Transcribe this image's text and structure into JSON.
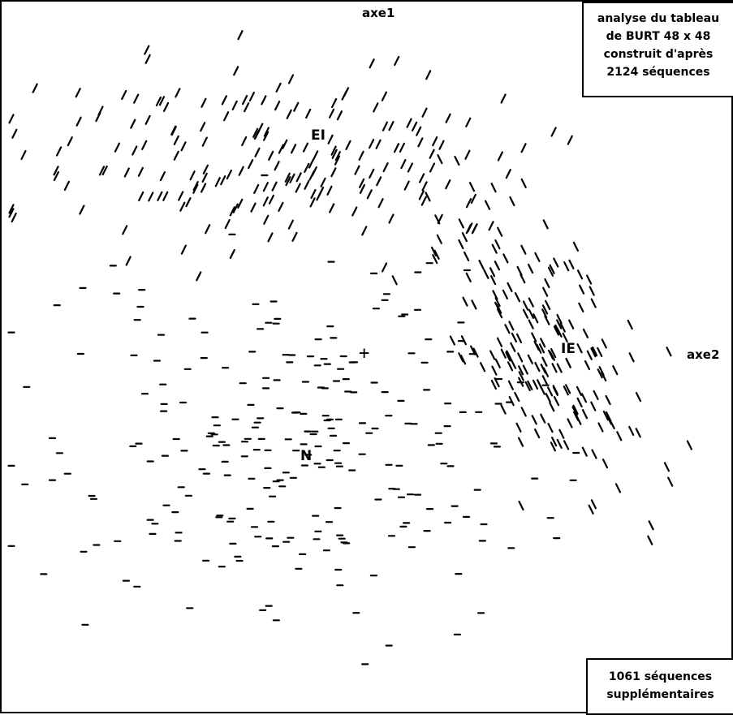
{
  "chart_data": {
    "type": "scatter",
    "axes": {
      "vertical": "axe1",
      "horizontal": "axe2"
    },
    "grid": false,
    "cloud_labels": [
      "EI",
      "IE",
      "N"
    ],
    "origin_mark": "+",
    "marker_types": [
      "/",
      "\\",
      "—"
    ],
    "clusters": [
      {
        "label": "EI",
        "marker": "/",
        "center_frac": [
          0.38,
          0.22
        ],
        "spread_frac": [
          0.32,
          0.12
        ],
        "count": 200
      },
      {
        "label": "IE",
        "marker": "\\",
        "center_frac": [
          0.74,
          0.48
        ],
        "spread_frac": [
          0.13,
          0.2
        ],
        "count": 200
      },
      {
        "label": "N",
        "marker": "—",
        "center_frac": [
          0.39,
          0.62
        ],
        "spread_frac": [
          0.3,
          0.24
        ],
        "count": 260
      }
    ],
    "legend_top": [
      "analyse du tableau",
      "de BURT 48 x 48",
      "construit d'après",
      "2124 séquences"
    ],
    "legend_bottom": [
      "1061 séquences",
      "supplémentaires"
    ]
  }
}
